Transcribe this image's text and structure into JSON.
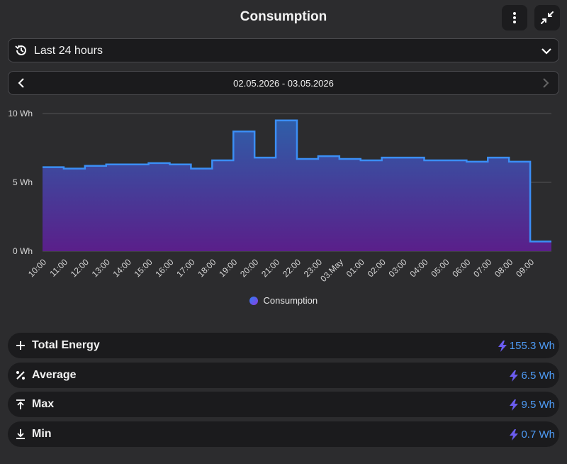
{
  "header": {
    "title": "Consumption"
  },
  "range_select": {
    "label": "Last 24 hours"
  },
  "date_nav": {
    "label": "02.05.2026 - 03.05.2026"
  },
  "chart_data": {
    "type": "area",
    "x": [
      "10:00",
      "11:00",
      "12:00",
      "13:00",
      "14:00",
      "15:00",
      "16:00",
      "17:00",
      "18:00",
      "19:00",
      "20:00",
      "21:00",
      "22:00",
      "23:00",
      "03.May",
      "01:00",
      "02:00",
      "03:00",
      "04:00",
      "05:00",
      "06:00",
      "07:00",
      "08:00",
      "09:00"
    ],
    "series": [
      {
        "name": "Consumption",
        "values": [
          6.1,
          6.0,
          6.2,
          6.3,
          6.3,
          6.4,
          6.3,
          6.0,
          6.6,
          8.7,
          6.8,
          9.5,
          6.7,
          6.9,
          6.7,
          6.6,
          6.8,
          6.8,
          6.6,
          6.6,
          6.5,
          6.8,
          6.5,
          0.7
        ]
      }
    ],
    "y_ticks": [
      "0 Wh",
      "5 Wh",
      "10 Wh"
    ],
    "ylim": [
      0,
      10
    ],
    "grid": true,
    "legend": "bottom-center",
    "colors": {
      "line": "#3b8ef5",
      "fill_top": "#2f5ea8",
      "fill_bottom": "#5a1f8a"
    }
  },
  "stats": [
    {
      "label": "Total Energy",
      "value": "155.3 Wh",
      "icon": "plus-icon"
    },
    {
      "label": "Average",
      "value": "6.5 Wh",
      "icon": "percent-icon"
    },
    {
      "label": "Max",
      "value": "9.5 Wh",
      "icon": "arrow-up-to-line-icon"
    },
    {
      "label": "Min",
      "value": "0.7 Wh",
      "icon": "arrow-down-to-line-icon"
    }
  ]
}
